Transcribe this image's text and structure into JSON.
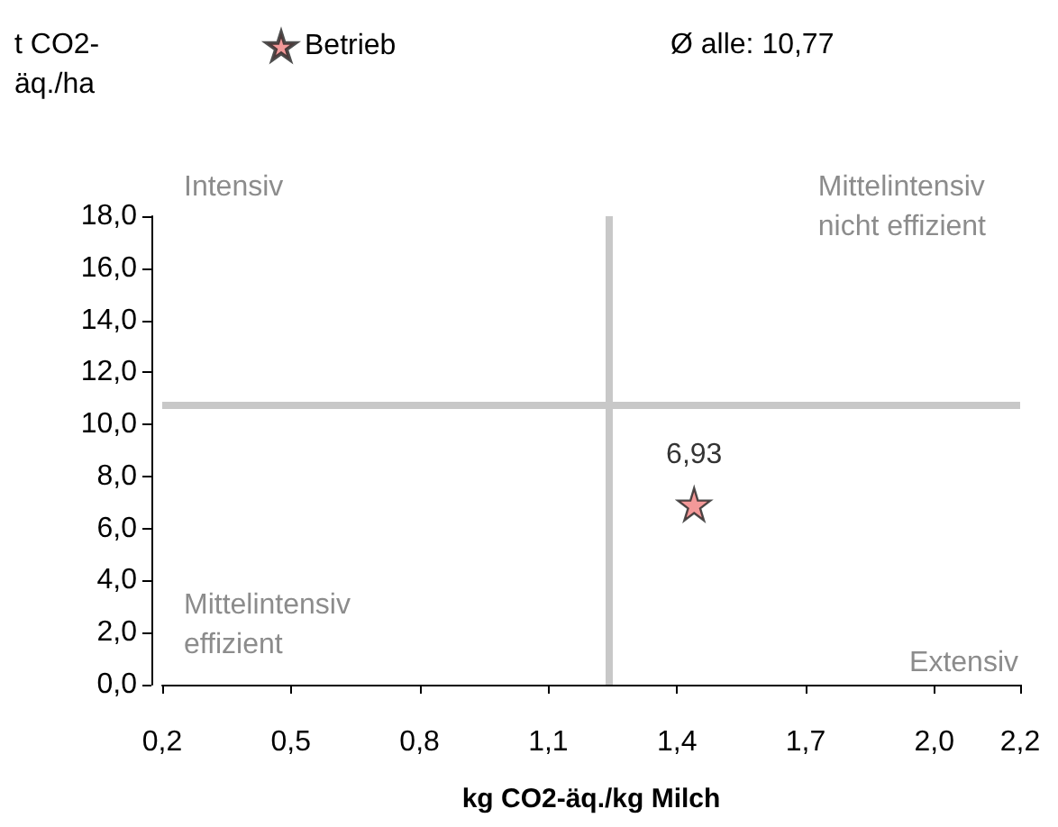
{
  "chart_data": {
    "type": "scatter",
    "ylabel": "t CO2-\näq./ha",
    "xlabel": "kg CO2-äq./kg Milch",
    "x": [
      1.44
    ],
    "series": [
      {
        "name": "Betrieb",
        "color": "#f08080",
        "values": [
          6.93
        ],
        "value_labels": [
          "6,93"
        ]
      }
    ],
    "marker": "star",
    "legend": "top",
    "grid": false,
    "xlim": [
      0.2,
      2.2
    ],
    "xticks": [
      {
        "value": 0.2,
        "label": "0,2"
      },
      {
        "value": 0.5,
        "label": "0,5"
      },
      {
        "value": 0.8,
        "label": "0,8"
      },
      {
        "value": 1.1,
        "label": "1,1"
      },
      {
        "value": 1.4,
        "label": "1,4"
      },
      {
        "value": 1.7,
        "label": "1,7"
      },
      {
        "value": 2.0,
        "label": "2,0"
      },
      {
        "value": 2.2,
        "label": "2,2"
      }
    ],
    "ylim": [
      0,
      18
    ],
    "yticks": [
      {
        "value": 0,
        "label": "0,0"
      },
      {
        "value": 2,
        "label": "2,0"
      },
      {
        "value": 4,
        "label": "4,0"
      },
      {
        "value": 6,
        "label": "6,0"
      },
      {
        "value": 8,
        "label": "8,0"
      },
      {
        "value": 10,
        "label": "10,0"
      },
      {
        "value": 12,
        "label": "12,0"
      },
      {
        "value": 14,
        "label": "14,0"
      },
      {
        "value": 16,
        "label": "16,0"
      },
      {
        "value": 18,
        "label": "18,0"
      }
    ],
    "ref_lines": [
      {
        "axis": "y",
        "value": 10.77,
        "color": "#c8c8c8"
      },
      {
        "axis": "x",
        "value": 1.24,
        "color": "#c8c8c8"
      }
    ],
    "annotations": [
      "Ø alle: 10,77",
      "Intensiv",
      "Mittelintensiv\nnicht effizient",
      "Mittelintensiv\neffizient",
      "Extensiv"
    ]
  }
}
